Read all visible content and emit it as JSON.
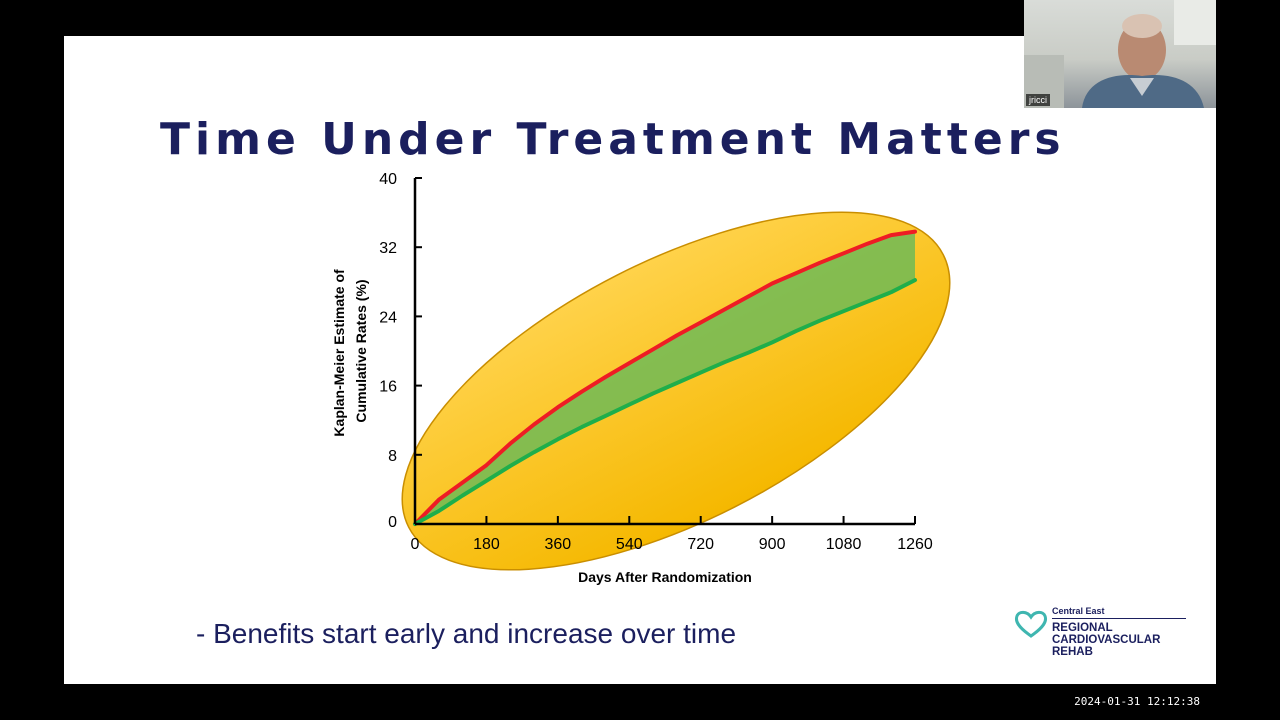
{
  "slide": {
    "title": "Time Under Treatment Matters",
    "bullet": "- Benefits start early and increase over time"
  },
  "logo": {
    "small_text": "Central East",
    "lines": [
      "REGIONAL",
      "CARDIOVASCULAR",
      "REHAB"
    ],
    "icon": "heart-icon"
  },
  "webcam": {
    "participant_name": "jricci"
  },
  "timestamp": "2024-01-31  12:12:38",
  "colors": {
    "title": "#1b1f5e",
    "series_red": "#ee1c24",
    "series_green": "#1fae4b",
    "highlight_ellipse": "#f5b800",
    "shaded_region": "#5cb85c"
  },
  "chart_data": {
    "type": "line",
    "xlabel": "Days After Randomization",
    "ylabel": "Kaplan-Meier Estimate of Cumulative Rates (%)",
    "ylabel_lines": [
      "Kaplan-Meier Estimate of",
      "Cumulative Rates (%)"
    ],
    "xlim": [
      0,
      1260
    ],
    "ylim": [
      0,
      40
    ],
    "xticks": [
      0,
      180,
      360,
      540,
      720,
      900,
      1080,
      1260
    ],
    "yticks": [
      0,
      8,
      16,
      24,
      32,
      40
    ],
    "grid": false,
    "series": [
      {
        "color": "#ee1c24",
        "x": [
          0,
          60,
          120,
          180,
          240,
          300,
          360,
          420,
          480,
          540,
          600,
          660,
          720,
          780,
          840,
          900,
          960,
          1020,
          1080,
          1140,
          1200,
          1260
        ],
        "y": [
          0,
          2.8,
          4.8,
          6.8,
          9.3,
          11.5,
          13.5,
          15.3,
          17,
          18.6,
          20.2,
          21.8,
          23.3,
          24.8,
          26.3,
          27.8,
          29,
          30.2,
          31.3,
          32.4,
          33.4,
          33.8
        ]
      },
      {
        "color": "#1fae4b",
        "x": [
          0,
          60,
          120,
          180,
          240,
          300,
          360,
          420,
          480,
          540,
          600,
          660,
          720,
          780,
          840,
          900,
          960,
          1020,
          1080,
          1140,
          1200,
          1260
        ],
        "y": [
          0,
          1.5,
          3.3,
          5.0,
          6.7,
          8.3,
          9.8,
          11.2,
          12.5,
          13.8,
          15.1,
          16.3,
          17.5,
          18.7,
          19.8,
          21,
          22.3,
          23.5,
          24.6,
          25.7,
          26.8,
          28.2
        ]
      }
    ]
  }
}
